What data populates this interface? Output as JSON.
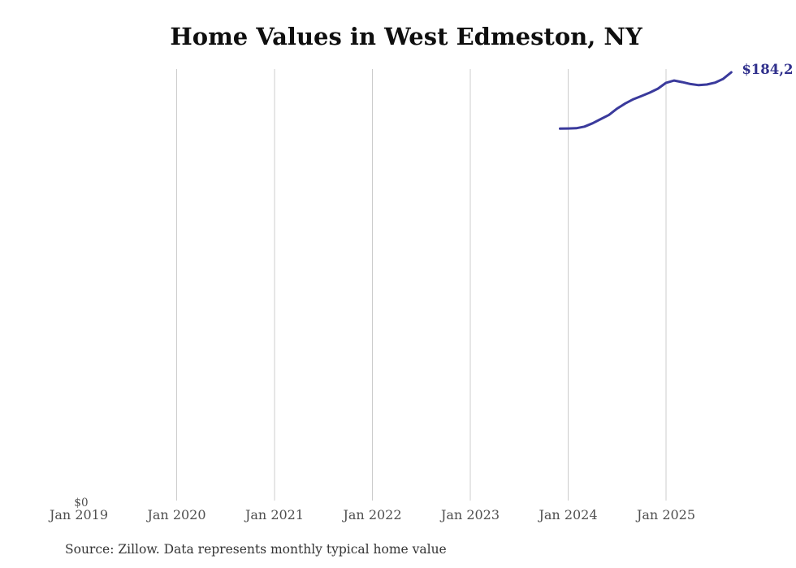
{
  "header": {
    "title": "Home Values in West Edmeston, NY"
  },
  "footer": {
    "source_note": "Source: Zillow. Data represents monthly typical home value"
  },
  "colors": {
    "line": "#3a3a9c",
    "end_label_text": "#30308c",
    "gridline": "#cccccc",
    "axis_text": "#4f4f4f",
    "title_text": "#0f0f0f",
    "source_text": "#333333",
    "background": "#ffffff"
  },
  "chart_data": {
    "type": "line",
    "title": "Home Values in West Edmeston, NY",
    "xlabel": "",
    "ylabel": "",
    "grid": "vertical-only",
    "legend": "none",
    "x_tick_labels": [
      "Jan 2019",
      "Jan 2020",
      "Jan 2021",
      "Jan 2022",
      "Jan 2023",
      "Jan 2024",
      "Jan 2025"
    ],
    "y_zero_label": "$0",
    "end_value_label": "$184,2",
    "ylim": [
      0,
      185000
    ],
    "x_axis_start": "Jan 2019",
    "series": [
      {
        "name": "Monthly typical home value",
        "x": [
          "Dec 2023",
          "Jan 2024",
          "Feb 2024",
          "Mar 2024",
          "Apr 2024",
          "May 2024",
          "Jun 2024",
          "Jul 2024",
          "Aug 2024",
          "Sep 2024",
          "Oct 2024",
          "Nov 2024",
          "Dec 2024",
          "Jan 2025",
          "Feb 2025",
          "Mar 2025",
          "Apr 2025",
          "May 2025",
          "Jun 2025",
          "Jul 2025",
          "Aug 2025",
          "Sep 2025"
        ],
        "values": [
          160100,
          160200,
          160300,
          161000,
          162400,
          164200,
          166000,
          168700,
          170900,
          172700,
          174100,
          175500,
          177200,
          179700,
          180700,
          180000,
          179200,
          178700,
          179000,
          179800,
          181400,
          184200
        ]
      }
    ]
  }
}
